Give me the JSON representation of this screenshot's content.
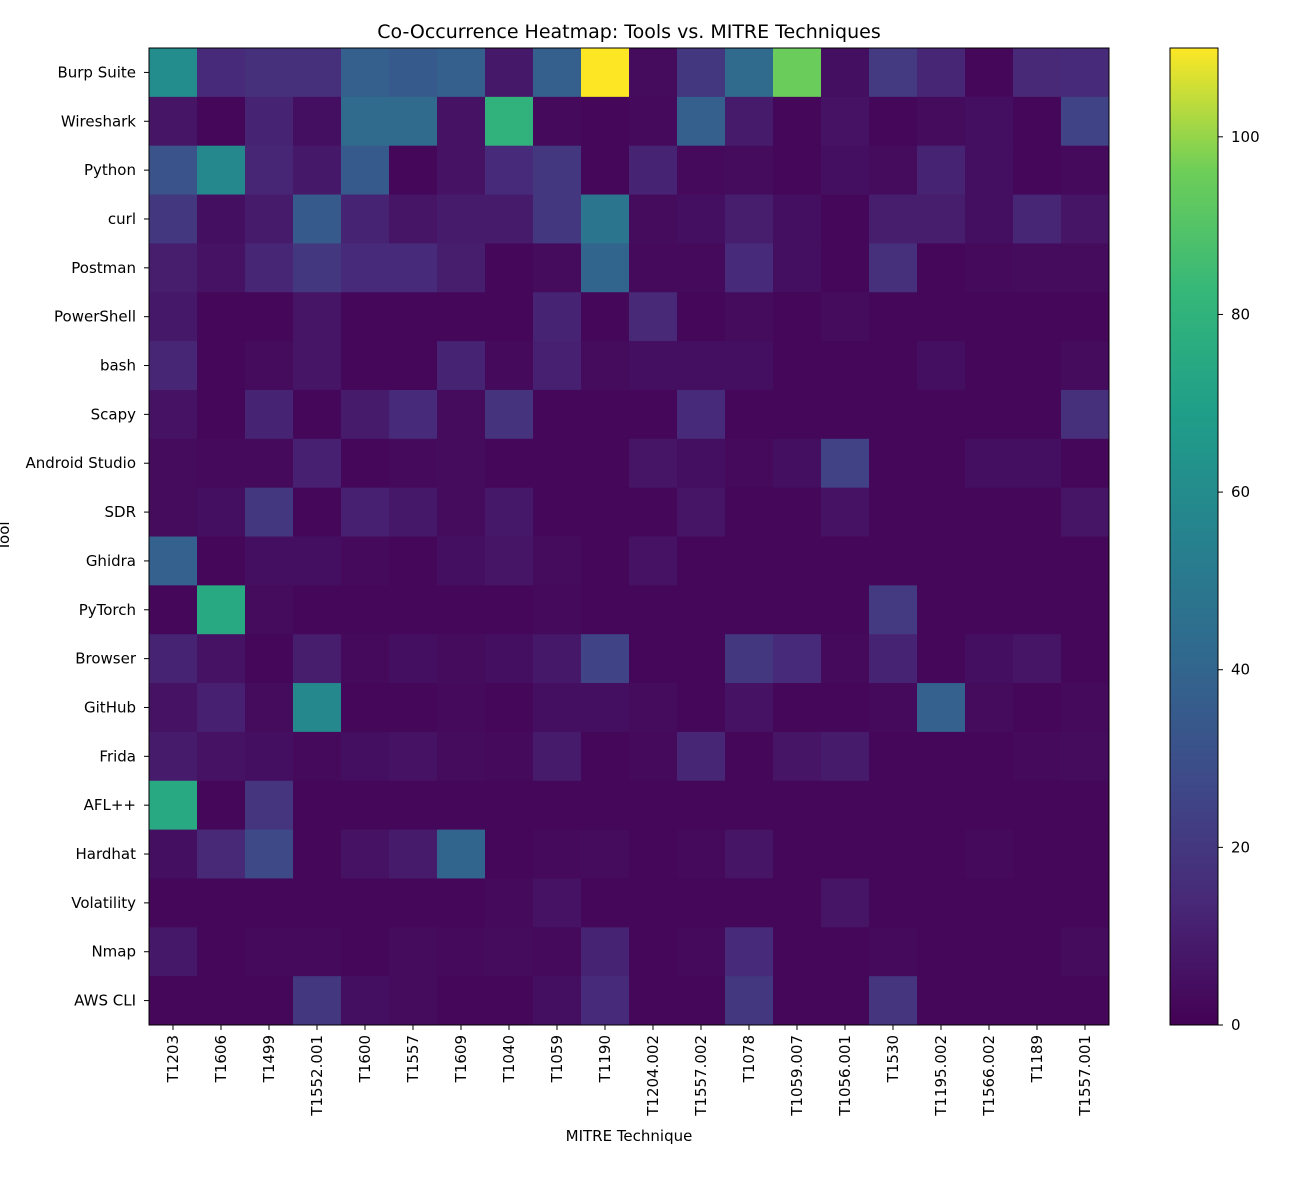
{
  "chart_data": {
    "type": "heatmap",
    "title": "Co-Occurrence Heatmap: Tools vs. MITRE Techniques",
    "xlabel": "MITRE Technique",
    "ylabel": "Tool",
    "colormap": "viridis",
    "value_range": [
      0,
      110
    ],
    "colorbar_ticks": [
      0,
      20,
      40,
      60,
      80,
      100
    ],
    "rows": [
      "Burp Suite",
      "Wireshark",
      "Python",
      "curl",
      "Postman",
      "PowerShell",
      "bash",
      "Scapy",
      "Android Studio",
      "SDR",
      "Ghidra",
      "PyTorch",
      "Browser",
      "GitHub",
      "Frida",
      "AFL++",
      "Hardhat",
      "Volatility",
      "Nmap",
      "AWS CLI"
    ],
    "columns": [
      "T1203",
      "T1606",
      "T1499",
      "T1552.001",
      "T1600",
      "T1557",
      "T1609",
      "T1040",
      "T1059",
      "T1190",
      "T1204.002",
      "T1557.002",
      "T1078",
      "T1059.007",
      "T1056.001",
      "T1530",
      "T1195.002",
      "T1566.002",
      "T1189",
      "T1557.001"
    ],
    "values": [
      [
        60,
        15,
        17,
        17,
        37,
        35,
        37,
        8,
        37,
        110,
        4,
        20,
        43,
        95,
        5,
        21,
        13,
        2,
        14,
        15
      ],
      [
        7,
        2,
        12,
        5,
        43,
        43,
        6,
        80,
        3,
        2,
        3,
        37,
        9,
        2,
        6,
        2,
        4,
        5,
        2,
        25
      ],
      [
        32,
        58,
        13,
        8,
        35,
        2,
        6,
        15,
        20,
        2,
        12,
        3,
        4,
        2,
        5,
        4,
        12,
        5,
        2,
        3
      ],
      [
        20,
        5,
        9,
        35,
        12,
        7,
        9,
        9,
        20,
        48,
        4,
        5,
        10,
        5,
        2,
        10,
        10,
        5,
        13,
        7
      ],
      [
        10,
        6,
        13,
        20,
        15,
        15,
        10,
        2,
        4,
        40,
        3,
        3,
        15,
        5,
        2,
        17,
        2,
        3,
        4,
        4
      ],
      [
        8,
        2,
        2,
        7,
        2,
        2,
        2,
        2,
        12,
        2,
        14,
        2,
        4,
        2,
        4,
        2,
        2,
        2,
        2,
        2
      ],
      [
        13,
        2,
        4,
        7,
        2,
        2,
        12,
        3,
        11,
        4,
        5,
        5,
        5,
        2,
        2,
        2,
        5,
        2,
        2,
        4
      ],
      [
        6,
        2,
        12,
        2,
        9,
        15,
        4,
        18,
        2,
        2,
        2,
        15,
        2,
        2,
        2,
        2,
        2,
        2,
        2,
        17
      ],
      [
        4,
        3,
        3,
        11,
        2,
        3,
        4,
        2,
        2,
        2,
        7,
        5,
        3,
        5,
        24,
        2,
        2,
        5,
        5,
        2
      ],
      [
        4,
        5,
        20,
        2,
        11,
        8,
        4,
        8,
        2,
        2,
        2,
        7,
        2,
        2,
        6,
        2,
        2,
        2,
        2,
        7
      ],
      [
        38,
        2,
        5,
        5,
        3,
        2,
        5,
        7,
        4,
        2,
        6,
        2,
        2,
        2,
        2,
        2,
        2,
        2,
        2,
        2
      ],
      [
        2,
        75,
        4,
        2,
        2,
        2,
        2,
        2,
        3,
        2,
        2,
        2,
        2,
        2,
        2,
        21,
        2,
        2,
        2,
        2
      ],
      [
        12,
        6,
        2,
        10,
        3,
        5,
        4,
        5,
        8,
        25,
        2,
        2,
        20,
        15,
        3,
        12,
        2,
        5,
        7,
        2
      ],
      [
        6,
        11,
        4,
        58,
        2,
        2,
        3,
        2,
        5,
        5,
        4,
        2,
        6,
        2,
        2,
        3,
        38,
        4,
        2,
        3
      ],
      [
        9,
        6,
        5,
        3,
        5,
        6,
        4,
        3,
        9,
        2,
        3,
        13,
        2,
        7,
        9,
        2,
        2,
        2,
        3,
        4
      ],
      [
        75,
        2,
        19,
        2,
        2,
        2,
        2,
        2,
        2,
        2,
        2,
        2,
        2,
        2,
        2,
        2,
        2,
        2,
        2,
        2
      ],
      [
        5,
        14,
        27,
        2,
        6,
        9,
        40,
        2,
        3,
        4,
        2,
        3,
        7,
        2,
        2,
        2,
        2,
        3,
        2,
        2
      ],
      [
        2,
        2,
        2,
        2,
        2,
        2,
        2,
        3,
        6,
        2,
        2,
        2,
        2,
        2,
        7,
        2,
        2,
        2,
        2,
        2
      ],
      [
        8,
        2,
        3,
        3,
        2,
        4,
        3,
        4,
        3,
        12,
        2,
        3,
        15,
        2,
        2,
        3,
        2,
        2,
        2,
        4
      ],
      [
        2,
        2,
        2,
        20,
        5,
        4,
        2,
        2,
        5,
        15,
        2,
        2,
        20,
        2,
        2,
        19,
        2,
        2,
        2,
        2
      ]
    ]
  }
}
